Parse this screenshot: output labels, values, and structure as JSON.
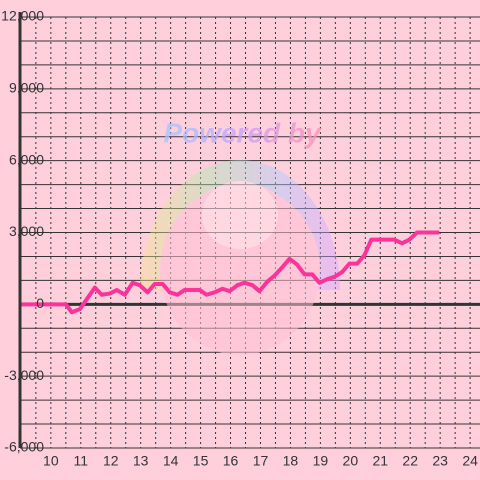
{
  "chart_data": {
    "type": "line",
    "watermark": "Powered by",
    "x": [
      8.97,
      10.5,
      10.7,
      10.97,
      11.47,
      11.7,
      11.97,
      12.2,
      12.47,
      12.73,
      12.97,
      13.23,
      13.47,
      13.73,
      13.97,
      14.23,
      14.47,
      14.97,
      15.2,
      15.47,
      15.73,
      15.97,
      16.23,
      16.47,
      16.73,
      16.97,
      17.23,
      17.47,
      17.73,
      17.97,
      18.23,
      18.47,
      18.73,
      18.97,
      19.23,
      19.47,
      19.73,
      19.97,
      20.23,
      20.47,
      20.7,
      20.97,
      21.47,
      21.73,
      21.97,
      22.23,
      22.97
    ],
    "series": [
      {
        "color": "#ff3399",
        "values": [
          0,
          0,
          -330,
          -200,
          700,
          400,
          450,
          600,
          400,
          900,
          800,
          500,
          850,
          850,
          500,
          400,
          600,
          600,
          400,
          500,
          650,
          550,
          800,
          900,
          800,
          550,
          950,
          1200,
          1550,
          1900,
          1650,
          1250,
          1250,
          900,
          1050,
          1150,
          1350,
          1700,
          1700,
          2050,
          2700,
          2700,
          2700,
          2550,
          2700,
          3000,
          3000
        ]
      }
    ],
    "xlim": [
      8.97,
      24.33
    ],
    "xticks": [
      10,
      11,
      12,
      13,
      14,
      15,
      16,
      17,
      18,
      19,
      20,
      21,
      22,
      23,
      24
    ],
    "ylim": [
      -6000,
      12000
    ],
    "yticks": [
      {
        "value": -6000,
        "label": "-6,000"
      },
      {
        "value": -3000,
        "label": "-3,000"
      },
      0,
      {
        "value": 3000,
        "label": "3,000"
      },
      {
        "value": 6000,
        "label": "6,000"
      },
      {
        "value": 9000,
        "label": "9,000"
      },
      {
        "value": 12000,
        "label": "12,000"
      }
    ],
    "grid": true
  }
}
